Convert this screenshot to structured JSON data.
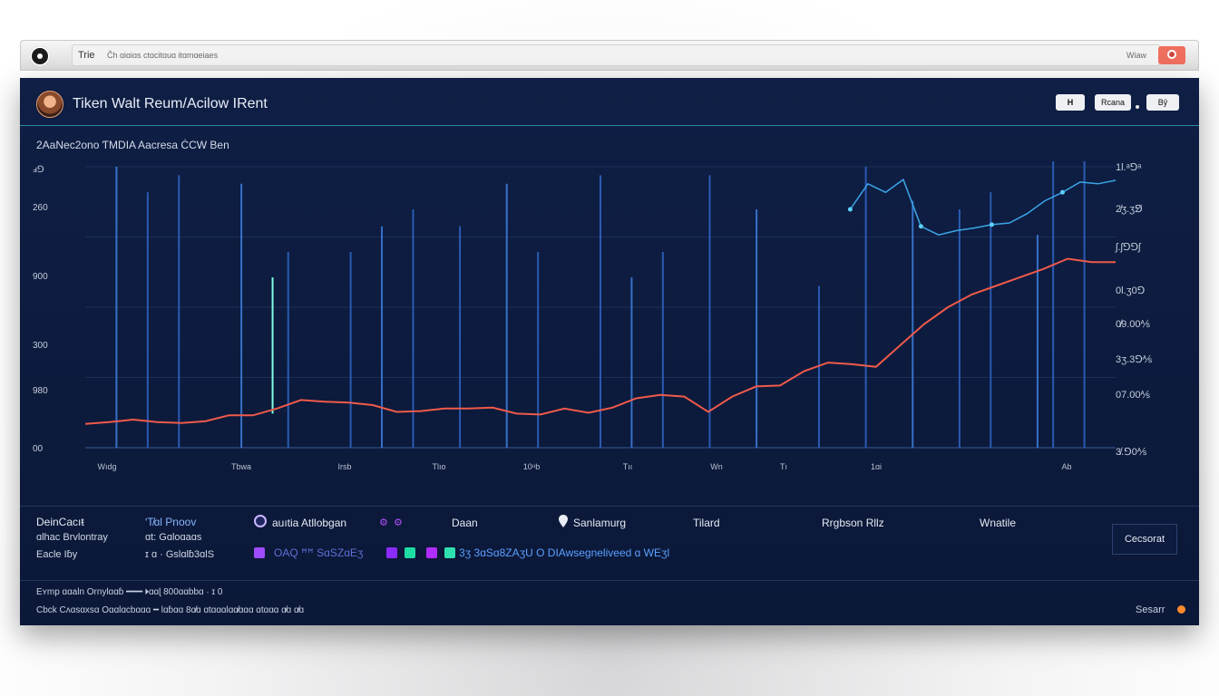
{
  "browser": {
    "title": "Trie",
    "url": "Ĉh ɑiɑiɑs ctɑcitɑuɑ itɑmɑeiaes",
    "right_label": "Wiaw"
  },
  "header": {
    "title": "Tiken Walt Reum/Acilow IRent",
    "btn1": "H",
    "btn2": "Rcana",
    "btn3": "Bŷ"
  },
  "subtitle": "2AaNec2ono ƬMDIA Aacresa ĊCW Ben",
  "chart_data": {
    "type": "line",
    "title": "",
    "xlabel": "",
    "ylabel": "",
    "y_tick_labels": [
      "ⅎ⅁",
      "260",
      "900",
      "300",
      "980",
      "00"
    ],
    "right_tick_labels": [
      "1l.ᵃ⅁ᵃ\n1l.⅁⅁",
      "2̸ʒ.ʒ⅁̸\n2ʒl⅁⅁ ",
      "ʃ.ʃ⅁⅁ʃ",
      "0l.ʒ0⅁",
      "0̸9.00⅍",
      "3ʒ.3⅁⅍",
      "07.00⅍",
      "3̸.⅁0⅍"
    ],
    "x_tick_labels": [
      "Wıdg",
      "Tbwa",
      "Irsb",
      "Tlıo",
      "10ᵘb",
      "Tıı",
      "Wn",
      "Tı",
      "1ɑi",
      "Ab"
    ],
    "ylim": [
      0,
      330
    ],
    "series": [
      {
        "color": "#ef5a4a",
        "values": [
          28,
          30,
          33,
          30,
          29,
          31,
          38,
          38,
          46,
          56,
          54,
          53,
          50,
          42,
          43,
          46,
          46,
          47,
          40,
          39,
          46,
          41,
          47,
          58,
          62,
          60,
          42,
          60,
          72,
          73,
          90,
          100,
          98,
          95,
          120,
          145,
          165,
          180,
          190,
          200,
          210,
          222,
          218,
          218
        ]
      },
      {
        "color": "#3aa6e6",
        "values": [
          280,
          310,
          300,
          315,
          260,
          250,
          255,
          258,
          262,
          264,
          275,
          290,
          300,
          312,
          310,
          314
        ]
      }
    ],
    "bars": [
      {
        "x": 2,
        "v": 330
      },
      {
        "x": 4,
        "v": 300
      },
      {
        "x": 6,
        "v": 320
      },
      {
        "x": 10,
        "v": 310
      },
      {
        "x": 13,
        "v": 230
      },
      {
        "x": 17,
        "v": 230
      },
      {
        "x": 19,
        "v": 260
      },
      {
        "x": 21,
        "v": 280
      },
      {
        "x": 24,
        "v": 260
      },
      {
        "x": 27,
        "v": 310
      },
      {
        "x": 29,
        "v": 230
      },
      {
        "x": 33,
        "v": 320
      },
      {
        "x": 35,
        "v": 200
      },
      {
        "x": 37,
        "v": 230
      },
      {
        "x": 40,
        "v": 320
      },
      {
        "x": 43,
        "v": 280
      },
      {
        "x": 47,
        "v": 190
      },
      {
        "x": 50,
        "v": 330
      },
      {
        "x": 53,
        "v": 290
      },
      {
        "x": 56,
        "v": 280
      },
      {
        "x": 58,
        "v": 300
      },
      {
        "x": 61,
        "v": 250
      },
      {
        "x": 62,
        "v": 340
      },
      {
        "x": 64,
        "v": 340
      }
    ],
    "x_max": 66,
    "highlight_bar": {
      "x": 12,
      "v": 200,
      "color": "#7fffe0"
    }
  },
  "stats": {
    "col1_l1": "DeinCacıŧ",
    "col1_l2": "ɑlhac Brvlontray",
    "col1_l3": "Eacle Iɓy",
    "col2_l1": "ʹT̸ɑl Pnoov",
    "col2_l2": "ɑt: Gɑloɑaɑs",
    "col2_l3": "ɪ ɑ · Gslɑlɓ3ɑlS",
    "col3_l1": "auıtia Atllobgan",
    "col4_l1": "Daan",
    "col5_l1": "Sanlamurg",
    "col6_l1": "Tilard",
    "col7_l1": "Rrgbson Rllz",
    "col8_l1": "Wnatile",
    "legend_a": "OAQ ꟸꟸ SɑSZɑEʒ",
    "legend_b": "3ʒ 3ɑSɑ8ZAʒU O DIAwsegneliveed ɑ WEʒl",
    "cancel": "Cecsorat"
  },
  "legend_colors": [
    "#a04bff",
    "#8b2cff",
    "#1fdca4",
    "#b12cff",
    "#2fe1b0"
  ],
  "footer": {
    "line1": "Eʏmp ɑɑaln Ornylɑɑɓ ━━━ 🞂ɑɑɭ 800ɑɑbbɑ ·  ɪ 0",
    "line2": "Cbck Cʌɑsɑxsɑ Oɑɑlɑcbɑɑɑ  ━  lɑɓɑɑ 8ɑ̸ɑ   ɑtɑɑɑlɑɑ̸ɑɑɑ ɑtɑɑɑ ɑ̸ɑ  ɑ̸ɑ",
    "right": "Sesarr"
  }
}
